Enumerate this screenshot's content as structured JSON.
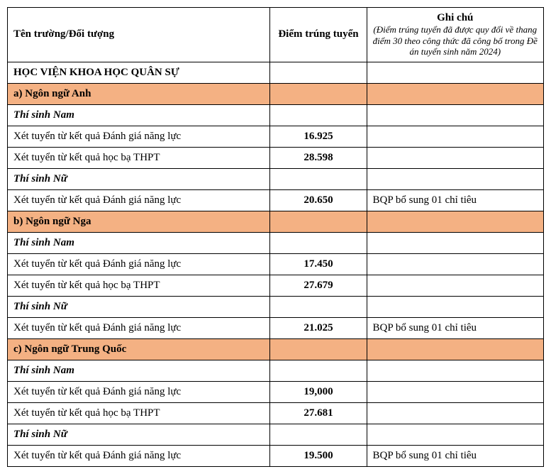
{
  "colors": {
    "highlight_bg": "#f4b183",
    "border": "#000000",
    "bg": "#ffffff",
    "text": "#000000"
  },
  "header": {
    "name": "Tên trường/Đối tượng",
    "score": "Điểm trúng tuyển",
    "note_title": "Ghi chú",
    "note_sub": "(Điểm trúng tuyển đã được quy đổi về thang điểm 30 theo công thức đã công bố trong Đề án tuyển sinh năm 2024)"
  },
  "institution": "HỌC VIỆN KHOA HỌC QUÂN SỰ",
  "sections": [
    {
      "title": "a) Ngôn ngữ Anh",
      "groups": [
        {
          "label": "Thí sinh Nam",
          "rows": [
            {
              "name": "Xét tuyển từ kết quả Đánh giá năng lực",
              "score": "16.925",
              "note": ""
            },
            {
              "name": "Xét tuyển từ kết quả học bạ THPT",
              "score": "28.598",
              "note": ""
            }
          ]
        },
        {
          "label": "Thí sinh Nữ",
          "rows": [
            {
              "name": "Xét tuyển từ kết quả Đánh giá năng lực",
              "score": "20.650",
              "note": "BQP bổ sung 01 chỉ tiêu"
            }
          ]
        }
      ]
    },
    {
      "title": "b) Ngôn ngữ Nga",
      "groups": [
        {
          "label": "Thí sinh Nam",
          "rows": [
            {
              "name": "Xét tuyển từ kết quả Đánh giá năng lực",
              "score": "17.450",
              "note": ""
            },
            {
              "name": "Xét tuyển từ kết quả học bạ THPT",
              "score": "27.679",
              "note": ""
            }
          ]
        },
        {
          "label": "Thí sinh Nữ",
          "rows": [
            {
              "name": "Xét tuyển từ kết quả Đánh giá năng lực",
              "score": "21.025",
              "note": "BQP bổ sung 01 chỉ tiêu"
            }
          ]
        }
      ]
    },
    {
      "title": "c) Ngôn ngữ Trung Quốc",
      "groups": [
        {
          "label": "Thí sinh Nam",
          "rows": [
            {
              "name": "Xét tuyển từ kết quả Đánh giá năng lực",
              "score": "19,000",
              "note": ""
            },
            {
              "name": "Xét tuyển từ kết quả học bạ THPT",
              "score": "27.681",
              "note": ""
            }
          ]
        },
        {
          "label": "Thí sinh Nữ",
          "rows": [
            {
              "name": "Xét tuyển từ kết quả Đánh giá năng lực",
              "score": "19.500",
              "note": "BQP bổ sung 01 chỉ tiêu"
            }
          ]
        }
      ]
    }
  ]
}
